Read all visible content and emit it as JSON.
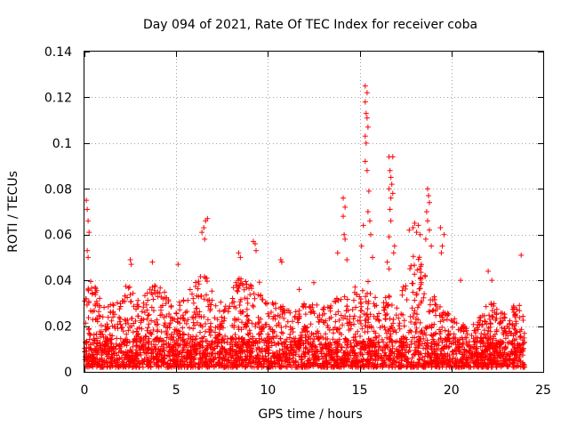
{
  "chart_data": {
    "type": "scatter",
    "title": "Day 094 of 2021, Rate Of TEC Index for receiver coba",
    "xlabel": "GPS time / hours",
    "ylabel": "ROTI / TECUs",
    "xlim": [
      0,
      25
    ],
    "ylim": [
      0,
      0.14
    ],
    "xticks": [
      0,
      5,
      10,
      15,
      20,
      25
    ],
    "xtick_labels": [
      "0",
      "5",
      "10",
      "15",
      "20",
      "25"
    ],
    "yticks": [
      0,
      0.02,
      0.04,
      0.06,
      0.08,
      0.1,
      0.12,
      0.14
    ],
    "ytick_labels": [
      "0",
      "0.02",
      "0.04",
      "0.06",
      "0.08",
      "0.1",
      "0.12",
      "0.14"
    ],
    "grid": true,
    "marker": "+",
    "color": "#ff0000",
    "series": [
      {
        "name": "ROTI",
        "background_envelope": [
          [
            0.0,
            0.04
          ],
          [
            0.5,
            0.04
          ],
          [
            1.0,
            0.028
          ],
          [
            1.5,
            0.03
          ],
          [
            2.0,
            0.033
          ],
          [
            2.5,
            0.043
          ],
          [
            3.0,
            0.03
          ],
          [
            3.5,
            0.036
          ],
          [
            4.0,
            0.04
          ],
          [
            4.5,
            0.034
          ],
          [
            5.0,
            0.03
          ],
          [
            5.5,
            0.033
          ],
          [
            6.0,
            0.04
          ],
          [
            6.5,
            0.046
          ],
          [
            7.0,
            0.035
          ],
          [
            7.5,
            0.03
          ],
          [
            8.0,
            0.036
          ],
          [
            8.5,
            0.042
          ],
          [
            9.0,
            0.038
          ],
          [
            9.5,
            0.04
          ],
          [
            10.0,
            0.03
          ],
          [
            10.5,
            0.032
          ],
          [
            11.0,
            0.03
          ],
          [
            11.5,
            0.028
          ],
          [
            12.0,
            0.03
          ],
          [
            12.5,
            0.03
          ],
          [
            13.0,
            0.028
          ],
          [
            13.5,
            0.03
          ],
          [
            14.0,
            0.035
          ],
          [
            14.5,
            0.037
          ],
          [
            15.0,
            0.038
          ],
          [
            15.5,
            0.045
          ],
          [
            16.0,
            0.03
          ],
          [
            16.5,
            0.035
          ],
          [
            17.0,
            0.03
          ],
          [
            17.5,
            0.04
          ],
          [
            18.0,
            0.056
          ],
          [
            18.5,
            0.045
          ],
          [
            19.0,
            0.035
          ],
          [
            19.5,
            0.028
          ],
          [
            20.0,
            0.025
          ],
          [
            20.5,
            0.022
          ],
          [
            21.0,
            0.02
          ],
          [
            21.5,
            0.025
          ],
          [
            22.0,
            0.03
          ],
          [
            22.5,
            0.03
          ],
          [
            23.0,
            0.028
          ],
          [
            23.5,
            0.03
          ],
          [
            24.0,
            0.028
          ]
        ],
        "points": [
          [
            0.1,
            0.075
          ],
          [
            0.15,
            0.071
          ],
          [
            0.2,
            0.066
          ],
          [
            0.25,
            0.061
          ],
          [
            0.15,
            0.053
          ],
          [
            0.2,
            0.05
          ],
          [
            2.5,
            0.049
          ],
          [
            2.55,
            0.047
          ],
          [
            3.7,
            0.048
          ],
          [
            5.1,
            0.047
          ],
          [
            6.4,
            0.061
          ],
          [
            6.5,
            0.063
          ],
          [
            6.6,
            0.066
          ],
          [
            6.7,
            0.067
          ],
          [
            6.55,
            0.058
          ],
          [
            8.4,
            0.052
          ],
          [
            8.5,
            0.05
          ],
          [
            9.2,
            0.057
          ],
          [
            9.3,
            0.056
          ],
          [
            9.35,
            0.053
          ],
          [
            10.7,
            0.049
          ],
          [
            10.75,
            0.048
          ],
          [
            11.7,
            0.036
          ],
          [
            12.5,
            0.039
          ],
          [
            14.1,
            0.076
          ],
          [
            14.2,
            0.072
          ],
          [
            14.1,
            0.068
          ],
          [
            14.15,
            0.06
          ],
          [
            14.2,
            0.058
          ],
          [
            13.8,
            0.052
          ],
          [
            14.3,
            0.049
          ],
          [
            15.3,
            0.125
          ],
          [
            15.4,
            0.122
          ],
          [
            15.3,
            0.118
          ],
          [
            15.35,
            0.113
          ],
          [
            15.4,
            0.111
          ],
          [
            15.45,
            0.107
          ],
          [
            15.3,
            0.103
          ],
          [
            15.35,
            0.1
          ],
          [
            15.3,
            0.092
          ],
          [
            15.4,
            0.088
          ],
          [
            15.5,
            0.079
          ],
          [
            15.45,
            0.07
          ],
          [
            15.55,
            0.066
          ],
          [
            15.2,
            0.064
          ],
          [
            15.6,
            0.06
          ],
          [
            15.1,
            0.055
          ],
          [
            15.7,
            0.05
          ],
          [
            16.6,
            0.094
          ],
          [
            16.8,
            0.094
          ],
          [
            16.65,
            0.088
          ],
          [
            16.7,
            0.085
          ],
          [
            16.75,
            0.082
          ],
          [
            16.6,
            0.08
          ],
          [
            16.8,
            0.078
          ],
          [
            16.7,
            0.076
          ],
          [
            16.65,
            0.071
          ],
          [
            16.7,
            0.066
          ],
          [
            16.6,
            0.059
          ],
          [
            16.9,
            0.055
          ],
          [
            16.85,
            0.052
          ],
          [
            16.5,
            0.048
          ],
          [
            16.6,
            0.045
          ],
          [
            17.7,
            0.062
          ],
          [
            17.9,
            0.063
          ],
          [
            18.0,
            0.065
          ],
          [
            18.1,
            0.061
          ],
          [
            18.2,
            0.064
          ],
          [
            18.3,
            0.06
          ],
          [
            18.7,
            0.08
          ],
          [
            18.75,
            0.077
          ],
          [
            18.8,
            0.074
          ],
          [
            18.65,
            0.07
          ],
          [
            18.7,
            0.066
          ],
          [
            18.8,
            0.062
          ],
          [
            18.6,
            0.058
          ],
          [
            18.9,
            0.055
          ],
          [
            19.4,
            0.063
          ],
          [
            19.6,
            0.06
          ],
          [
            19.5,
            0.055
          ],
          [
            19.45,
            0.052
          ],
          [
            20.5,
            0.04
          ],
          [
            22.0,
            0.044
          ],
          [
            22.2,
            0.04
          ],
          [
            23.8,
            0.051
          ]
        ]
      }
    ]
  }
}
